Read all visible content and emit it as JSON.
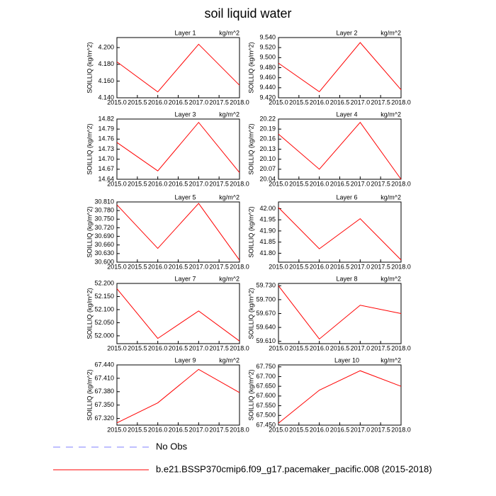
{
  "title": "soil liquid water",
  "legend": [
    {
      "name": "No Obs",
      "color": "#8080ff",
      "dash": true
    },
    {
      "name": "b.e21.BSSP370cmip6.f09_g17.pacemaker_pacific.008 (2015-2018)",
      "color": "#ff0000",
      "dash": false
    }
  ],
  "chart_data": [
    {
      "type": "line",
      "title": "Layer 1",
      "units": "kg/m^2",
      "ylabel": "SOILLIQ  (kg/m^2)",
      "color": "#ff0000",
      "x": [
        2015,
        2016,
        2017,
        2018
      ],
      "values": [
        4.183,
        4.147,
        4.204,
        4.155
      ],
      "xlim": [
        2015,
        2018
      ],
      "xticks": [
        {
          "value": 2015,
          "label": "2015.0"
        },
        2015.5,
        {
          "value": 2016,
          "label": "2016.0"
        },
        2016.5,
        {
          "value": 2017,
          "label": "2017.0"
        },
        2017.5,
        {
          "value": 2018,
          "label": "2018.0"
        }
      ],
      "ylim": [
        4.14,
        4.212
      ],
      "yticks": [
        {
          "value": 4.14,
          "label": "4.140"
        },
        {
          "value": 4.16,
          "label": "4.160"
        },
        {
          "value": 4.18,
          "label": "4.180"
        },
        {
          "value": 4.2,
          "label": "4.200"
        }
      ]
    },
    {
      "type": "line",
      "title": "Layer 2",
      "units": "kg/m^2",
      "ylabel": "SOILLIQ  (kg/m^2)",
      "color": "#ff0000",
      "x": [
        2015,
        2016,
        2017,
        2018
      ],
      "values": [
        9.489,
        9.432,
        9.53,
        9.436
      ],
      "xlim": [
        2015,
        2018
      ],
      "xticks": [
        {
          "value": 2015,
          "label": "2015.0"
        },
        2015.5,
        {
          "value": 2016,
          "label": "2016.0"
        },
        2016.5,
        {
          "value": 2017,
          "label": "2017.0"
        },
        2017.5,
        {
          "value": 2018,
          "label": "2018.0"
        }
      ],
      "ylim": [
        9.42,
        9.54
      ],
      "yticks": [
        {
          "value": 9.42,
          "label": "9.420"
        },
        {
          "value": 9.44,
          "label": "9.440"
        },
        {
          "value": 9.46,
          "label": "9.460"
        },
        {
          "value": 9.48,
          "label": "9.480"
        },
        {
          "value": 9.5,
          "label": "9.500"
        },
        {
          "value": 9.52,
          "label": "9.520"
        },
        {
          "value": 9.54,
          "label": "9.540"
        }
      ]
    },
    {
      "type": "line",
      "title": "Layer 3",
      "units": "kg/m^2",
      "ylabel": "SOILLIQ  (kg/m^2)",
      "color": "#ff0000",
      "x": [
        2015,
        2016,
        2017,
        2018
      ],
      "values": [
        14.75,
        14.665,
        14.81,
        14.66
      ],
      "xlim": [
        2015,
        2018
      ],
      "xticks": [
        {
          "value": 2015,
          "label": "2015.0"
        },
        2015.5,
        {
          "value": 2016,
          "label": "2016.0"
        },
        2016.5,
        {
          "value": 2017,
          "label": "2017.0"
        },
        2017.5,
        {
          "value": 2018,
          "label": "2018.0"
        }
      ],
      "ylim": [
        14.64,
        14.82
      ],
      "yticks": [
        14.64,
        14.67,
        {
          "value": 14.7,
          "label": "14.70"
        },
        14.73,
        14.76,
        14.79,
        14.82
      ]
    },
    {
      "type": "line",
      "title": "Layer 4",
      "units": "kg/m^2",
      "ylabel": "SOILLIQ  (kg/m^2)",
      "color": "#ff0000",
      "x": [
        2015,
        2016,
        2017,
        2018
      ],
      "values": [
        20.175,
        20.07,
        20.21,
        20.04
      ],
      "xlim": [
        2015,
        2018
      ],
      "xticks": [
        {
          "value": 2015,
          "label": "2015.0"
        },
        2015.5,
        {
          "value": 2016,
          "label": "2016.0"
        },
        2016.5,
        {
          "value": 2017,
          "label": "2017.0"
        },
        2017.5,
        {
          "value": 2018,
          "label": "2018.0"
        }
      ],
      "ylim": [
        20.04,
        20.22
      ],
      "yticks": [
        20.04,
        20.07,
        {
          "value": 20.1,
          "label": "20.10"
        },
        20.13,
        20.16,
        20.19,
        20.22
      ]
    },
    {
      "type": "line",
      "title": "Layer 5",
      "units": "kg/m^2",
      "ylabel": "SOILLIQ  (kg/m^2)",
      "color": "#ff0000",
      "x": [
        2015,
        2016,
        2017,
        2018
      ],
      "values": [
        30.8,
        30.648,
        30.805,
        30.607
      ],
      "xlim": [
        2015,
        2018
      ],
      "xticks": [
        {
          "value": 2015,
          "label": "2015.0"
        },
        2015.5,
        {
          "value": 2016,
          "label": "2016.0"
        },
        2016.5,
        {
          "value": 2017,
          "label": "2017.0"
        },
        2017.5,
        {
          "value": 2018,
          "label": "2018.0"
        }
      ],
      "ylim": [
        30.6,
        30.81
      ],
      "yticks": [
        {
          "value": 30.6,
          "label": "30.600"
        },
        {
          "value": 30.63,
          "label": "30.630"
        },
        {
          "value": 30.66,
          "label": "30.660"
        },
        {
          "value": 30.69,
          "label": "30.690"
        },
        {
          "value": 30.72,
          "label": "30.720"
        },
        {
          "value": 30.75,
          "label": "30.750"
        },
        {
          "value": 30.78,
          "label": "30.780"
        },
        {
          "value": 30.81,
          "label": "30.810"
        }
      ]
    },
    {
      "type": "line",
      "title": "Layer 6",
      "units": "kg/m^2",
      "ylabel": "SOILLIQ  (kg/m^2)",
      "color": "#ff0000",
      "x": [
        2015,
        2016,
        2017,
        2018
      ],
      "values": [
        42.005,
        41.82,
        41.955,
        41.77
      ],
      "xlim": [
        2015,
        2018
      ],
      "xticks": [
        {
          "value": 2015,
          "label": "2015.0"
        },
        2015.5,
        {
          "value": 2016,
          "label": "2016.0"
        },
        2016.5,
        {
          "value": 2017,
          "label": "2017.0"
        },
        2017.5,
        {
          "value": 2018,
          "label": "2018.0"
        }
      ],
      "ylim": [
        41.76,
        42.03
      ],
      "yticks": [
        {
          "value": 41.8,
          "label": "41.80"
        },
        41.85,
        {
          "value": 41.9,
          "label": "41.90"
        },
        41.95,
        {
          "value": 42,
          "label": "42.00"
        }
      ]
    },
    {
      "type": "line",
      "title": "Layer 7",
      "units": "kg/m^2",
      "ylabel": "SOILLIQ  (kg/m^2)",
      "color": "#ff0000",
      "x": [
        2015,
        2016,
        2017,
        2018
      ],
      "values": [
        52.18,
        51.99,
        52.095,
        51.98
      ],
      "xlim": [
        2015,
        2018
      ],
      "xticks": [
        {
          "value": 2015,
          "label": "2015.0"
        },
        2015.5,
        {
          "value": 2016,
          "label": "2016.0"
        },
        2016.5,
        {
          "value": 2017,
          "label": "2017.0"
        },
        2017.5,
        {
          "value": 2018,
          "label": "2018.0"
        }
      ],
      "ylim": [
        51.97,
        52.2
      ],
      "yticks": [
        {
          "value": 52,
          "label": "52.000"
        },
        {
          "value": 52.05,
          "label": "52.050"
        },
        {
          "value": 52.1,
          "label": "52.100"
        },
        {
          "value": 52.15,
          "label": "52.150"
        },
        {
          "value": 52.2,
          "label": "52.200"
        }
      ]
    },
    {
      "type": "line",
      "title": "Layer 8",
      "units": "kg/m^2",
      "ylabel": "SOILLIQ  (kg/m^2)",
      "color": "#ff0000",
      "x": [
        2015,
        2016,
        2017,
        2018
      ],
      "values": [
        59.73,
        59.615,
        59.688,
        59.67
      ],
      "xlim": [
        2015,
        2018
      ],
      "xticks": [
        {
          "value": 2015,
          "label": "2015.0"
        },
        2015.5,
        {
          "value": 2016,
          "label": "2016.0"
        },
        2016.5,
        {
          "value": 2017,
          "label": "2017.0"
        },
        2017.5,
        {
          "value": 2018,
          "label": "2018.0"
        }
      ],
      "ylim": [
        59.605,
        59.735
      ],
      "yticks": [
        {
          "value": 59.61,
          "label": "59.610"
        },
        {
          "value": 59.64,
          "label": "59.640"
        },
        {
          "value": 59.67,
          "label": "59.670"
        },
        {
          "value": 59.7,
          "label": "59.700"
        },
        {
          "value": 59.73,
          "label": "59.730"
        }
      ]
    },
    {
      "type": "line",
      "title": "Layer 9",
      "units": "kg/m^2",
      "ylabel": "SOILLIQ  (kg/m^2)",
      "color": "#ff0000",
      "x": [
        2015,
        2016,
        2017,
        2018
      ],
      "values": [
        67.31,
        67.355,
        67.43,
        67.378
      ],
      "xlim": [
        2015,
        2018
      ],
      "xticks": [
        {
          "value": 2015,
          "label": "2015.0"
        },
        2015.5,
        {
          "value": 2016,
          "label": "2016.0"
        },
        2016.5,
        {
          "value": 2017,
          "label": "2017.0"
        },
        2017.5,
        {
          "value": 2018,
          "label": "2018.0"
        }
      ],
      "ylim": [
        67.305,
        67.44
      ],
      "yticks": [
        {
          "value": 67.32,
          "label": "67.320"
        },
        {
          "value": 67.35,
          "label": "67.350"
        },
        {
          "value": 67.38,
          "label": "67.380"
        },
        {
          "value": 67.41,
          "label": "67.410"
        },
        {
          "value": 67.44,
          "label": "67.440"
        }
      ]
    },
    {
      "type": "line",
      "title": "Layer 10",
      "units": "kg/m^2",
      "ylabel": "SOILLIQ  (kg/m^2)",
      "color": "#ff0000",
      "x": [
        2015,
        2016,
        2017,
        2018
      ],
      "values": [
        67.46,
        67.63,
        67.73,
        67.65
      ],
      "xlim": [
        2015,
        2018
      ],
      "xticks": [
        {
          "value": 2015,
          "label": "2015.0"
        },
        2015.5,
        {
          "value": 2016,
          "label": "2016.0"
        },
        2016.5,
        {
          "value": 2017,
          "label": "2017.0"
        },
        2017.5,
        {
          "value": 2018,
          "label": "2018.0"
        }
      ],
      "ylim": [
        67.45,
        67.76
      ],
      "yticks": [
        {
          "value": 67.45,
          "label": "67.450"
        },
        {
          "value": 67.5,
          "label": "67.500"
        },
        {
          "value": 67.55,
          "label": "67.550"
        },
        {
          "value": 67.6,
          "label": "67.600"
        },
        {
          "value": 67.65,
          "label": "67.650"
        },
        {
          "value": 67.7,
          "label": "67.700"
        },
        {
          "value": 67.75,
          "label": "67.750"
        }
      ]
    }
  ]
}
